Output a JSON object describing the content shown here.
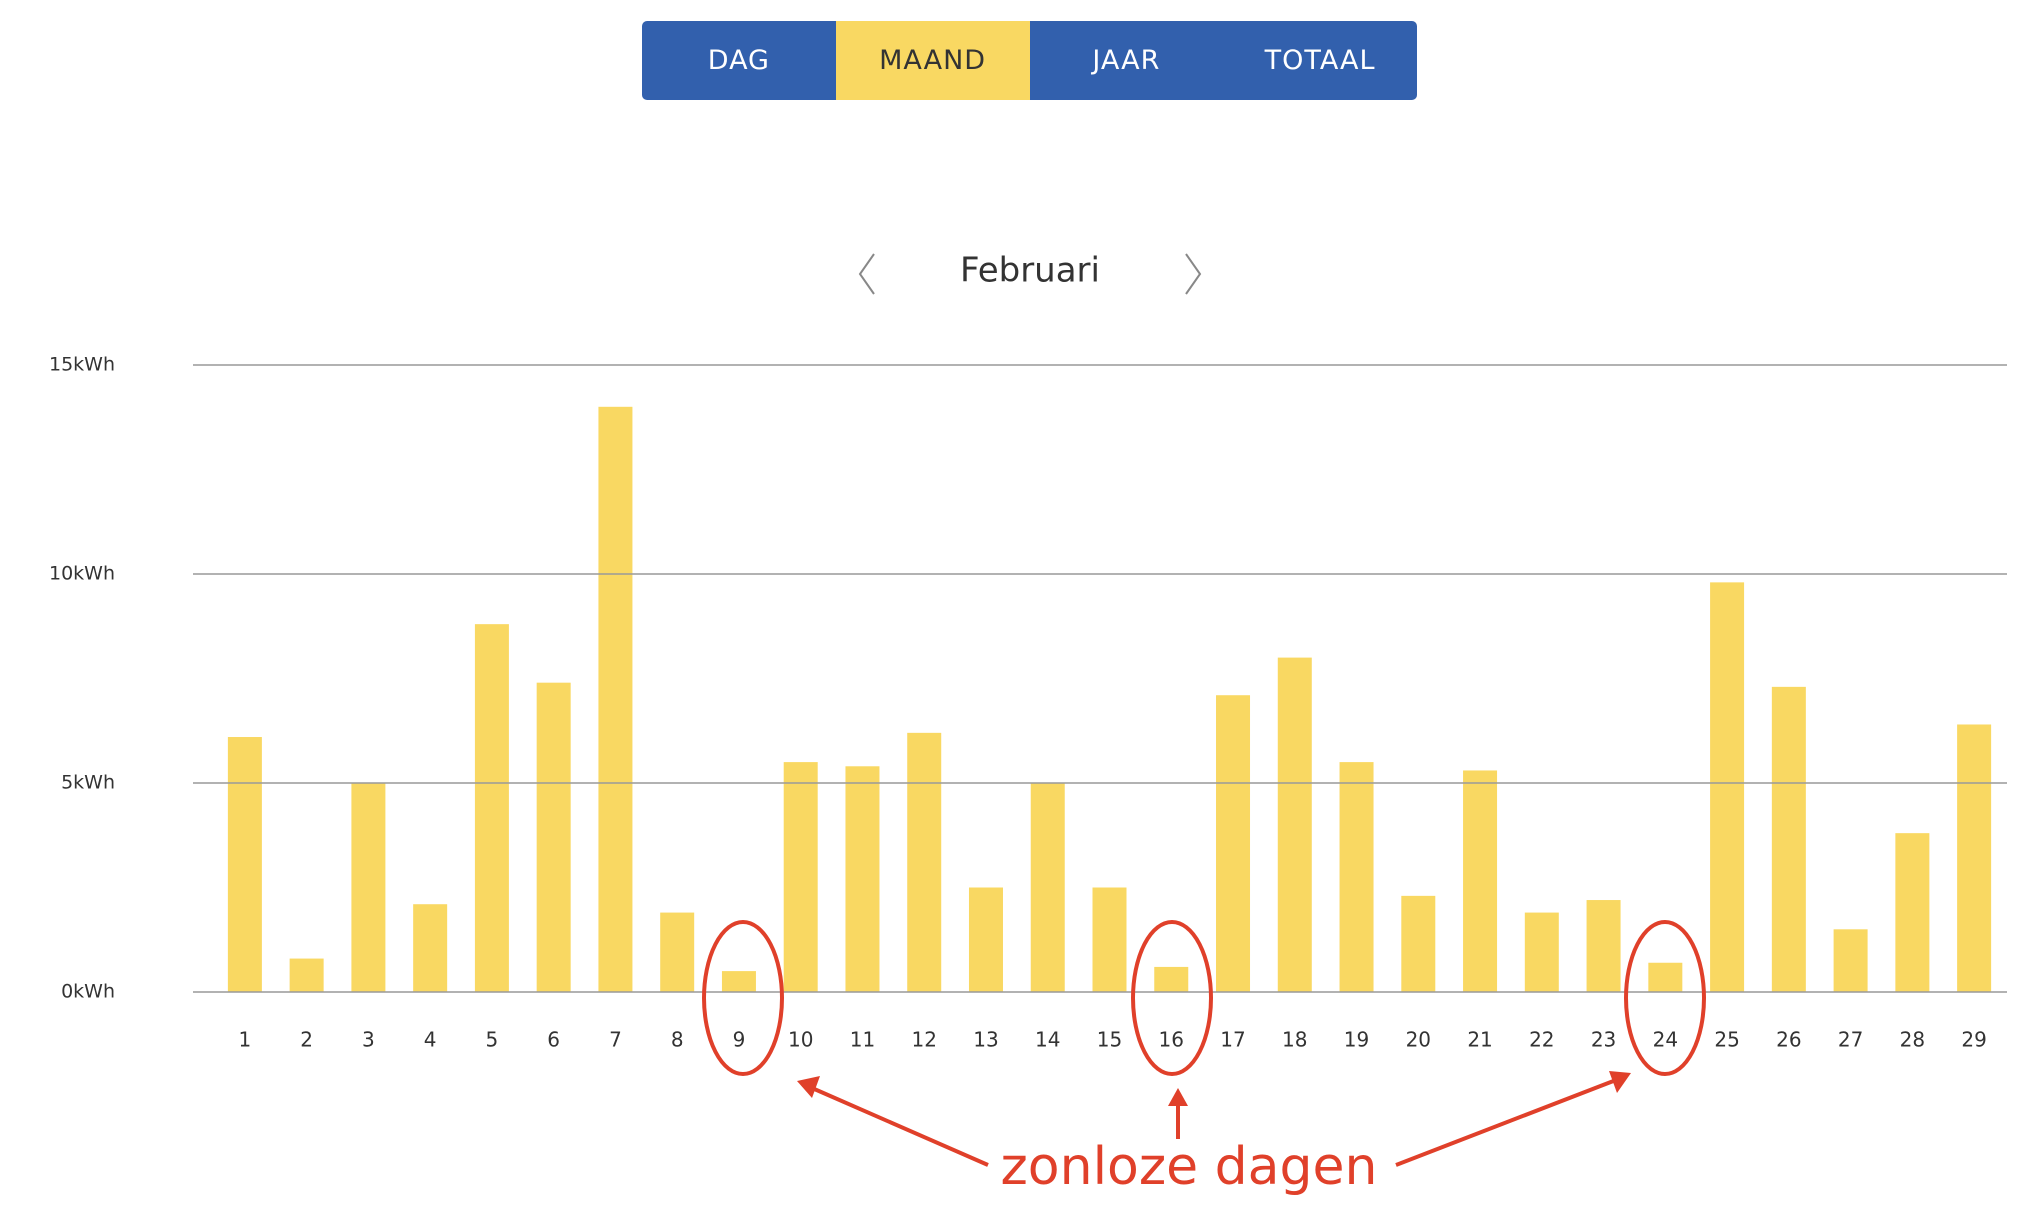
{
  "tabs": [
    "DAG",
    "MAAND",
    "JAAR",
    "TOTAAL"
  ],
  "period": "Februari",
  "chart_data": {
    "type": "bar",
    "categories": [
      "1",
      "2",
      "3",
      "4",
      "5",
      "6",
      "7",
      "8",
      "9",
      "10",
      "11",
      "12",
      "13",
      "14",
      "15",
      "16",
      "17",
      "18",
      "19",
      "20",
      "21",
      "22",
      "23",
      "24",
      "25",
      "26",
      "27",
      "28",
      "29"
    ],
    "values": [
      6.1,
      0.8,
      5.0,
      2.1,
      8.8,
      7.4,
      14.0,
      1.9,
      0.5,
      5.5,
      5.4,
      6.2,
      2.5,
      5.0,
      2.5,
      0.6,
      7.1,
      8.0,
      5.5,
      2.3,
      5.3,
      1.9,
      2.2,
      0.7,
      9.8,
      7.3,
      1.5,
      3.8,
      6.4
    ],
    "color": "#f9d862",
    "ylim": [
      0,
      15
    ],
    "yticks": [
      {
        "value": 0,
        "label": "0kWh"
      },
      {
        "value": 5,
        "label": "5kWh"
      },
      {
        "value": 10,
        "label": "10kWh"
      },
      {
        "value": 15,
        "label": "15kWh"
      }
    ],
    "grid": true,
    "annotation": "zonloze dagen"
  }
}
